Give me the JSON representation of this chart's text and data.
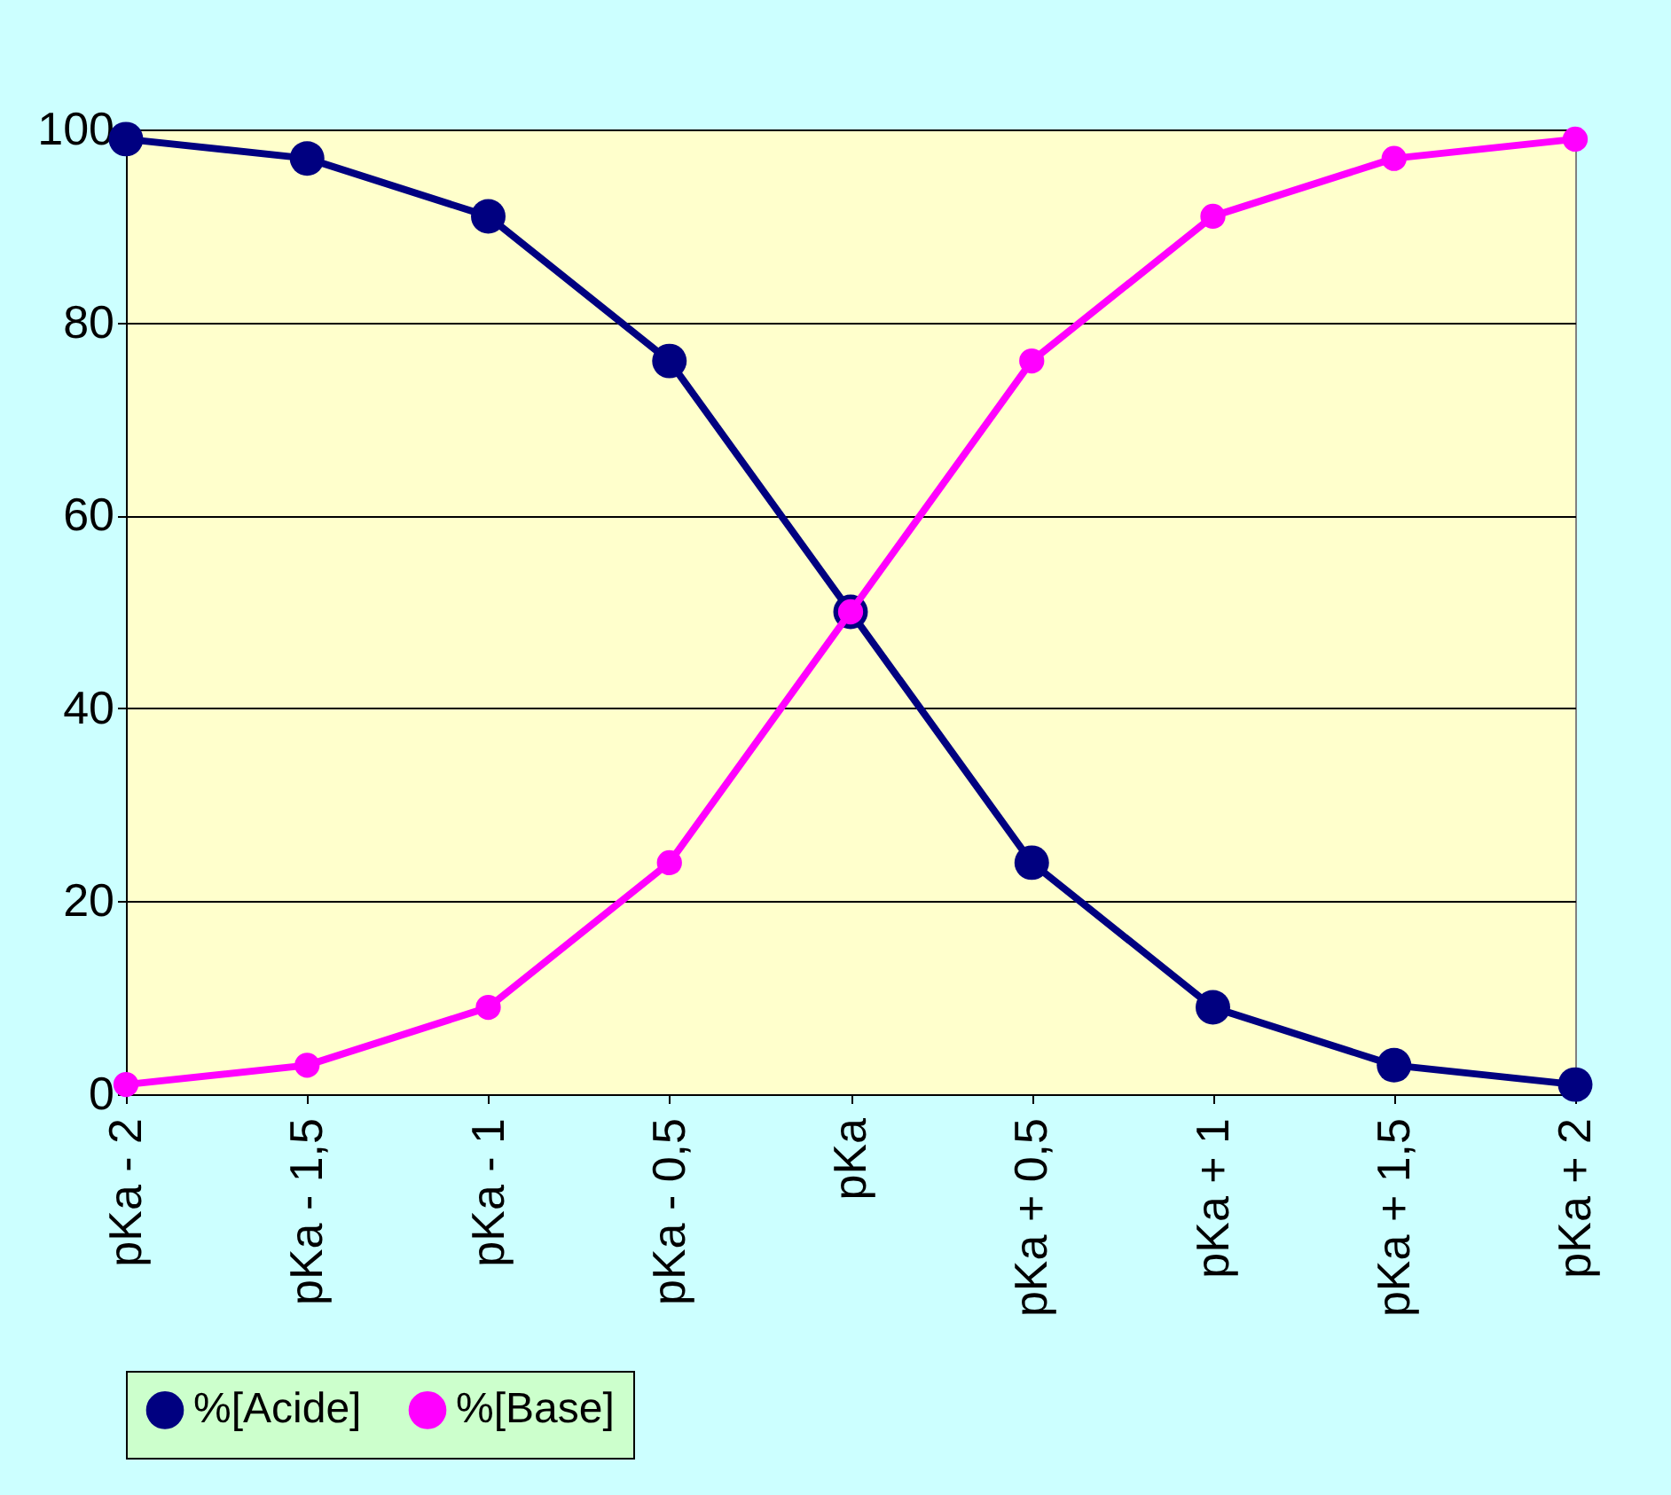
{
  "chart_data": {
    "type": "line",
    "categories": [
      "pKa - 2",
      "pKa - 1,5",
      "pKa - 1",
      "pKa - 0,5",
      "pKa",
      "pKa + 0,5",
      "pKa + 1",
      "pKa + 1,5",
      "pKa + 2"
    ],
    "series": [
      {
        "name": "%[Acide]",
        "color": "#000080",
        "values": [
          99,
          97,
          91,
          76,
          50,
          24,
          9,
          3,
          1
        ]
      },
      {
        "name": "%[Base]",
        "color": "#ff00ff",
        "values": [
          1,
          3,
          9,
          24,
          50,
          76,
          91,
          97,
          99
        ]
      }
    ],
    "ylim": [
      0,
      100
    ],
    "yticks": [
      0,
      20,
      40,
      60,
      80,
      100
    ],
    "grid": "y",
    "legend": "bottom",
    "marker": "circle",
    "line_style": "solid"
  }
}
